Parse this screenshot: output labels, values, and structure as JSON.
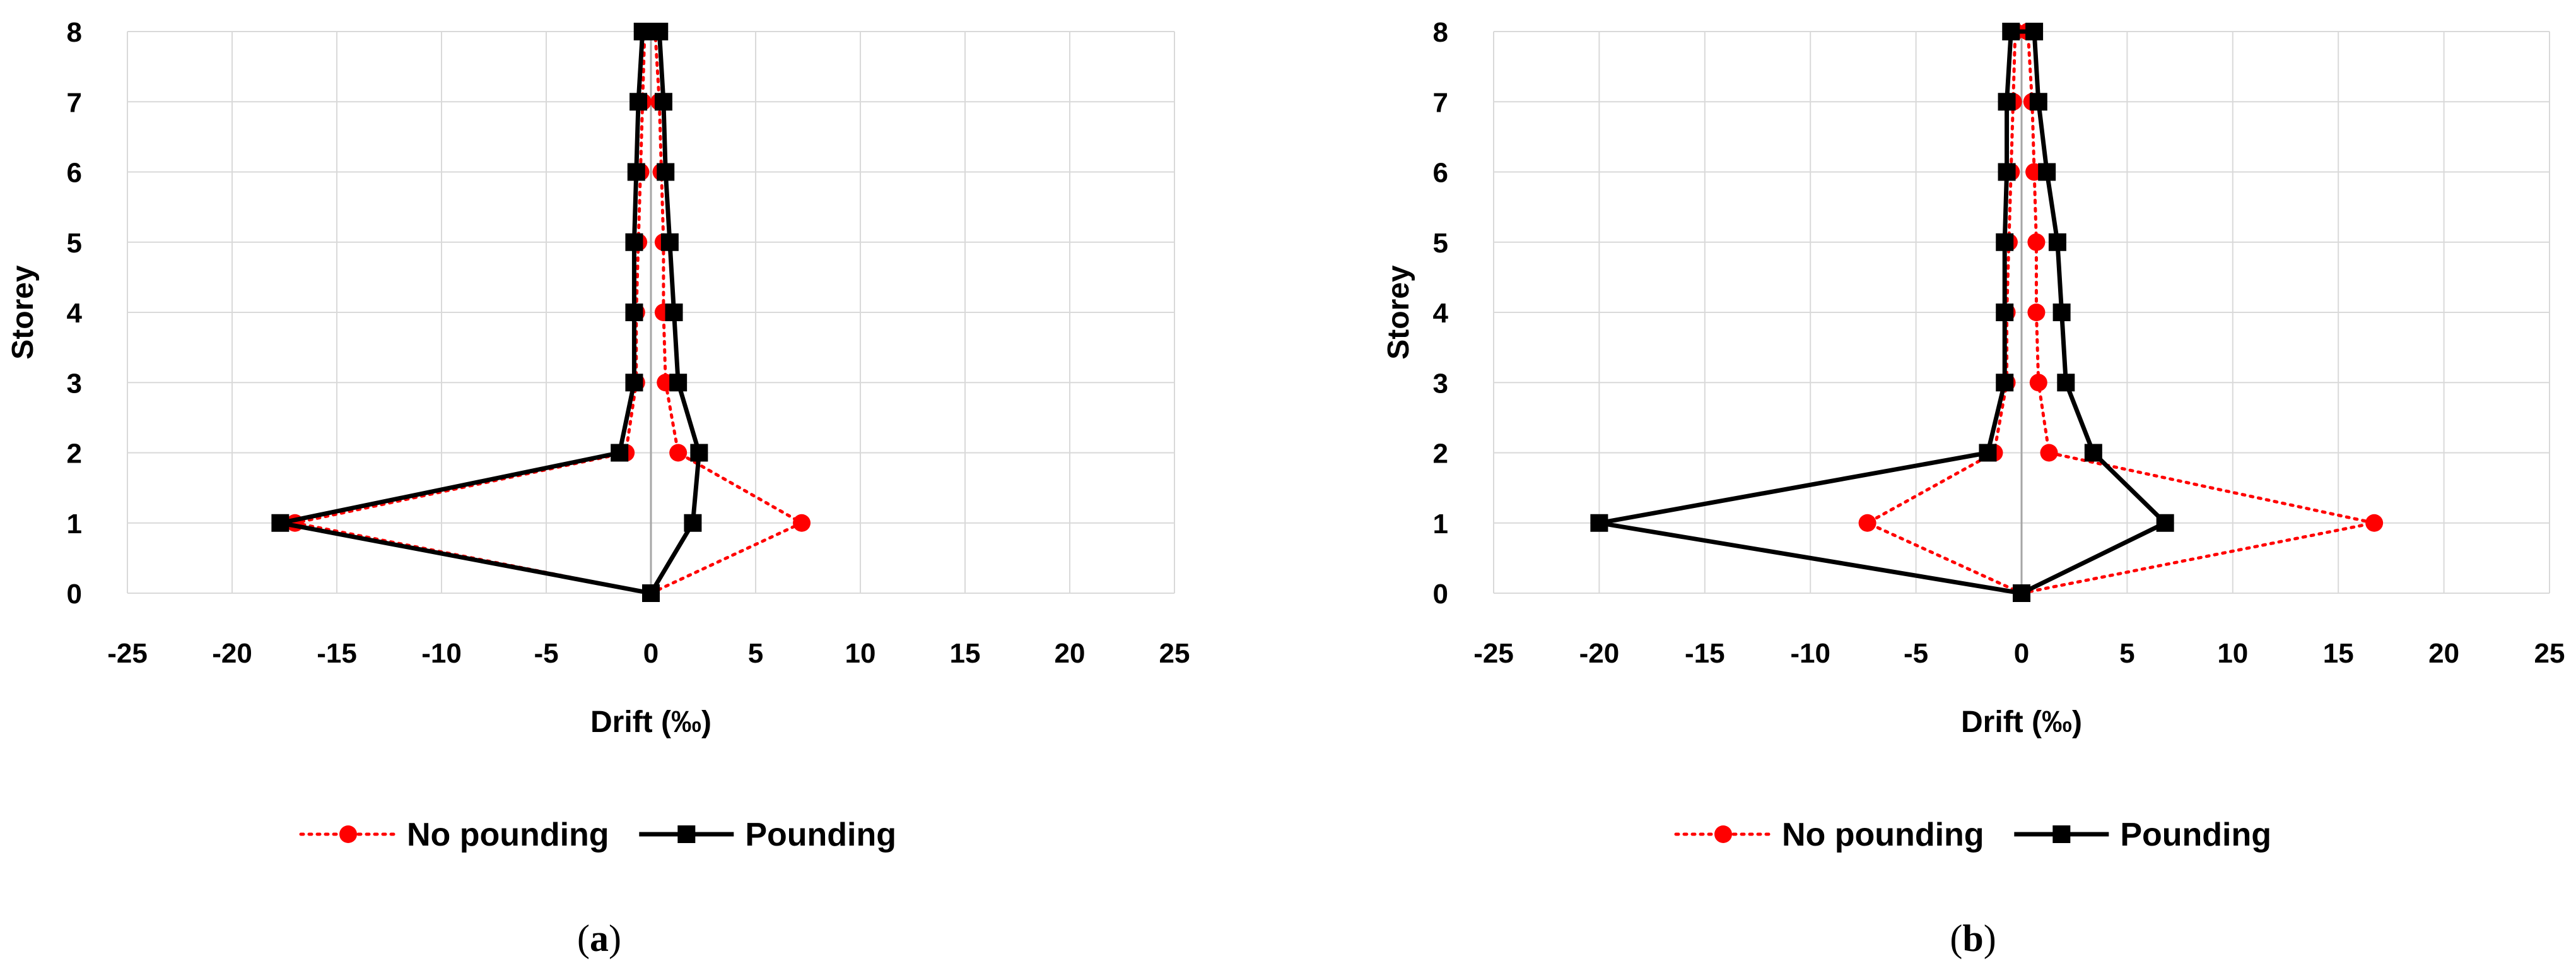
{
  "chart_data": [
    {
      "type": "line",
      "panel_label": "a",
      "xlabel": "Drift (‰)",
      "ylabel": "Storey",
      "xlim": [
        -25,
        25
      ],
      "ylim": [
        0,
        8
      ],
      "x_ticks": [
        -25,
        -20,
        -15,
        -10,
        -5,
        0,
        5,
        10,
        15,
        20,
        25
      ],
      "y_ticks": [
        0,
        1,
        2,
        3,
        4,
        5,
        6,
        7,
        8
      ],
      "grid": true,
      "legend_position": "bottom",
      "series": [
        {
          "name": "No pounding",
          "color": "#ff0000",
          "line_style": "dotted",
          "marker": "circle",
          "points": [
            {
              "x": 0,
              "y": 0
            },
            {
              "x": 7.2,
              "y": 1
            },
            {
              "x": 1.3,
              "y": 2
            },
            {
              "x": 0.7,
              "y": 3
            },
            {
              "x": 0.6,
              "y": 4
            },
            {
              "x": 0.6,
              "y": 5
            },
            {
              "x": 0.5,
              "y": 6
            },
            {
              "x": 0.4,
              "y": 7
            },
            {
              "x": 0.2,
              "y": 8
            },
            {
              "x": -0.3,
              "y": 8
            },
            {
              "x": -0.4,
              "y": 7
            },
            {
              "x": -0.5,
              "y": 6
            },
            {
              "x": -0.6,
              "y": 5
            },
            {
              "x": -0.7,
              "y": 4
            },
            {
              "x": -0.7,
              "y": 3
            },
            {
              "x": -1.2,
              "y": 2
            },
            {
              "x": -17,
              "y": 1
            },
            {
              "x": 0,
              "y": 0
            }
          ]
        },
        {
          "name": "Pounding",
          "color": "#000000",
          "line_style": "solid",
          "marker": "square",
          "points": [
            {
              "x": 0,
              "y": 0
            },
            {
              "x": 2.0,
              "y": 1
            },
            {
              "x": 2.3,
              "y": 2
            },
            {
              "x": 1.3,
              "y": 3
            },
            {
              "x": 1.1,
              "y": 4
            },
            {
              "x": 0.9,
              "y": 5
            },
            {
              "x": 0.7,
              "y": 6
            },
            {
              "x": 0.6,
              "y": 7
            },
            {
              "x": 0.4,
              "y": 8
            },
            {
              "x": -0.4,
              "y": 8
            },
            {
              "x": -0.6,
              "y": 7
            },
            {
              "x": -0.7,
              "y": 6
            },
            {
              "x": -0.8,
              "y": 5
            },
            {
              "x": -0.8,
              "y": 4
            },
            {
              "x": -0.8,
              "y": 3
            },
            {
              "x": -1.5,
              "y": 2
            },
            {
              "x": -17.7,
              "y": 1
            },
            {
              "x": 0,
              "y": 0
            }
          ]
        }
      ]
    },
    {
      "type": "line",
      "panel_label": "b",
      "xlabel": "Drift (‰)",
      "ylabel": "Storey",
      "xlim": [
        -25,
        25
      ],
      "ylim": [
        0,
        8
      ],
      "x_ticks": [
        -25,
        -20,
        -15,
        -10,
        -5,
        0,
        5,
        10,
        15,
        20,
        25
      ],
      "y_ticks": [
        0,
        1,
        2,
        3,
        4,
        5,
        6,
        7,
        8
      ],
      "grid": true,
      "legend_position": "bottom",
      "series": [
        {
          "name": "No pounding",
          "color": "#ff0000",
          "line_style": "dotted",
          "marker": "circle",
          "points": [
            {
              "x": 0,
              "y": 0
            },
            {
              "x": 16.7,
              "y": 1
            },
            {
              "x": 1.3,
              "y": 2
            },
            {
              "x": 0.8,
              "y": 3
            },
            {
              "x": 0.7,
              "y": 4
            },
            {
              "x": 0.7,
              "y": 5
            },
            {
              "x": 0.6,
              "y": 6
            },
            {
              "x": 0.5,
              "y": 7
            },
            {
              "x": 0.3,
              "y": 8
            },
            {
              "x": -0.3,
              "y": 8
            },
            {
              "x": -0.4,
              "y": 7
            },
            {
              "x": -0.5,
              "y": 6
            },
            {
              "x": -0.6,
              "y": 5
            },
            {
              "x": -0.7,
              "y": 4
            },
            {
              "x": -0.7,
              "y": 3
            },
            {
              "x": -1.3,
              "y": 2
            },
            {
              "x": -7.3,
              "y": 1
            },
            {
              "x": 0,
              "y": 0
            }
          ]
        },
        {
          "name": "Pounding",
          "color": "#000000",
          "line_style": "solid",
          "marker": "square",
          "points": [
            {
              "x": 0,
              "y": 0
            },
            {
              "x": 6.8,
              "y": 1
            },
            {
              "x": 3.4,
              "y": 2
            },
            {
              "x": 2.1,
              "y": 3
            },
            {
              "x": 1.9,
              "y": 4
            },
            {
              "x": 1.7,
              "y": 5
            },
            {
              "x": 1.2,
              "y": 6
            },
            {
              "x": 0.8,
              "y": 7
            },
            {
              "x": 0.6,
              "y": 8
            },
            {
              "x": -0.5,
              "y": 8
            },
            {
              "x": -0.7,
              "y": 7
            },
            {
              "x": -0.7,
              "y": 6
            },
            {
              "x": -0.8,
              "y": 5
            },
            {
              "x": -0.8,
              "y": 4
            },
            {
              "x": -0.8,
              "y": 3
            },
            {
              "x": -1.6,
              "y": 2
            },
            {
              "x": -20,
              "y": 1
            },
            {
              "x": 0,
              "y": 0
            }
          ]
        }
      ]
    }
  ]
}
